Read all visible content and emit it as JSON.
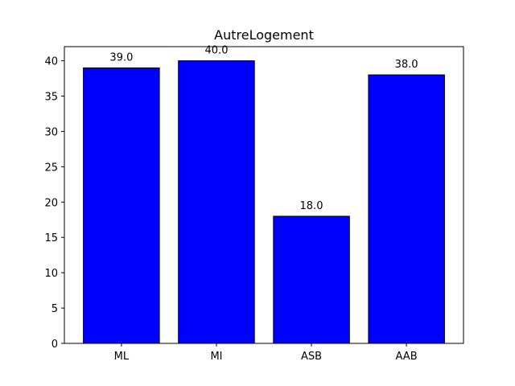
{
  "chart_data": {
    "type": "bar",
    "title": "AutreLogement",
    "xlabel": "",
    "ylabel": "",
    "categories": [
      "ML",
      "MI",
      "ASB",
      "AAB"
    ],
    "values": [
      39.0,
      40.0,
      18.0,
      38.0
    ],
    "data_labels": [
      "39.0",
      "40.0",
      "18.0",
      "38.0"
    ],
    "ylim": [
      0,
      42
    ],
    "yticks": [
      0,
      5,
      10,
      15,
      20,
      25,
      30,
      35,
      40
    ],
    "grid": false,
    "legend": "none",
    "bar_color": "#0000ff",
    "edge_color": "#000000"
  }
}
